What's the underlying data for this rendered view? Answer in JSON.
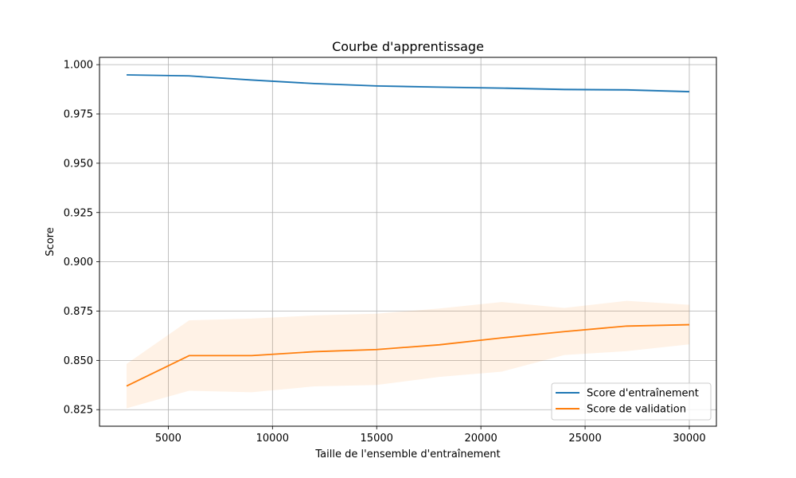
{
  "chart_data": {
    "type": "line",
    "title": "Courbe d'apprentissage",
    "xlabel": "Taille de l'ensemble d'entraînement",
    "ylabel": "Score",
    "xlim": [
      1700,
      31300
    ],
    "ylim": [
      0.8166,
      1.0037
    ],
    "xticks": [
      5000,
      10000,
      15000,
      20000,
      25000,
      30000
    ],
    "xtick_labels": [
      "5000",
      "10000",
      "15000",
      "20000",
      "25000",
      "30000"
    ],
    "yticks": [
      0.825,
      0.85,
      0.875,
      0.9,
      0.925,
      0.95,
      0.975,
      1.0
    ],
    "ytick_labels": [
      "0.825",
      "0.850",
      "0.875",
      "0.900",
      "0.925",
      "0.950",
      "0.975",
      "1.000"
    ],
    "grid": true,
    "legend_position": "bottom-right",
    "x": [
      3000,
      6000,
      9000,
      12000,
      15000,
      18000,
      21000,
      24000,
      27000,
      30000
    ],
    "series": [
      {
        "name": "Score d'entraînement",
        "color": "#1f77b4",
        "values": [
          0.9948,
          0.9943,
          0.9922,
          0.9904,
          0.9892,
          0.9886,
          0.9881,
          0.9874,
          0.9872,
          0.9863
        ],
        "band_lower": [
          0.9946,
          0.994,
          0.9918,
          0.9899,
          0.9887,
          0.9881,
          0.9875,
          0.9867,
          0.9865,
          0.9857
        ],
        "band_upper": [
          0.995,
          0.9947,
          0.9926,
          0.9909,
          0.9897,
          0.9892,
          0.9887,
          0.9881,
          0.9879,
          0.9869
        ]
      },
      {
        "name": "Score de validation",
        "color": "#ff7f0e",
        "values": [
          0.837,
          0.8524,
          0.8524,
          0.8544,
          0.8555,
          0.8579,
          0.8614,
          0.8646,
          0.8674,
          0.8681
        ],
        "band_lower": [
          0.8257,
          0.8346,
          0.8338,
          0.8368,
          0.8375,
          0.8416,
          0.8443,
          0.8527,
          0.8547,
          0.8581
        ],
        "band_upper": [
          0.8482,
          0.8703,
          0.8712,
          0.8728,
          0.8737,
          0.8763,
          0.8796,
          0.8766,
          0.8802,
          0.8782
        ]
      }
    ]
  }
}
